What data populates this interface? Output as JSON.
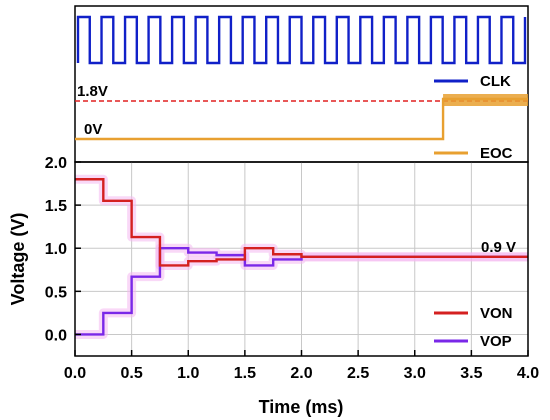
{
  "colors": {
    "clk": "#1020c8",
    "eoc": "#e8a030",
    "von": "#d42020",
    "vop": "#7a28e8",
    "ref_line": "#e02020",
    "halo": "#f4b8f0",
    "grid": "#c8c8c8"
  },
  "chart_data": [
    {
      "type": "line",
      "panel": "digital",
      "x": [
        0,
        4.0
      ],
      "series": [
        {
          "name": "CLK",
          "kind": "square-wave",
          "periods_shown": 19,
          "duty_cycle": 0.5,
          "levels": [
            "low",
            "high"
          ]
        },
        {
          "name": "EOC",
          "kind": "step",
          "x": [
            0,
            3.25,
            3.25,
            4.0
          ],
          "levels": [
            "0V",
            "0V",
            "1.8V",
            "1.8V"
          ]
        }
      ],
      "annotations": [
        {
          "text": "1.8V",
          "style": "dashed reference line"
        },
        {
          "text": "0V"
        }
      ],
      "legend_position": "right"
    },
    {
      "type": "line",
      "panel": "analog",
      "xlabel": "Time (ms)",
      "ylabel": "Voltage (V)",
      "xlim": [
        0,
        4.0
      ],
      "ylim": [
        -0.25,
        2.0
      ],
      "xticks": [
        "0.0",
        "0.5",
        "1.0",
        "1.5",
        "2.0",
        "2.5",
        "3.0",
        "3.5",
        "4.0"
      ],
      "yticks": [
        "0.0",
        "0.5",
        "1.0",
        "1.5",
        "2.0"
      ],
      "grid": true,
      "series": [
        {
          "name": "VON",
          "step": "post",
          "x": [
            0,
            0.25,
            0.5,
            0.75,
            1.0,
            1.25,
            1.5,
            1.75,
            2.0,
            4.0
          ],
          "y": [
            1.8,
            1.55,
            1.13,
            0.8,
            0.85,
            0.87,
            1.0,
            0.93,
            0.9,
            0.9
          ]
        },
        {
          "name": "VOP",
          "step": "post",
          "x": [
            0,
            0.25,
            0.5,
            0.75,
            1.0,
            1.25,
            1.5,
            1.75,
            2.0,
            4.0
          ],
          "y": [
            0.0,
            0.25,
            0.67,
            1.0,
            0.95,
            0.92,
            0.8,
            0.87,
            0.9,
            0.9
          ]
        }
      ],
      "annotations": [
        {
          "text": "0.9 V"
        }
      ],
      "legend_position": "bottom-right"
    }
  ]
}
